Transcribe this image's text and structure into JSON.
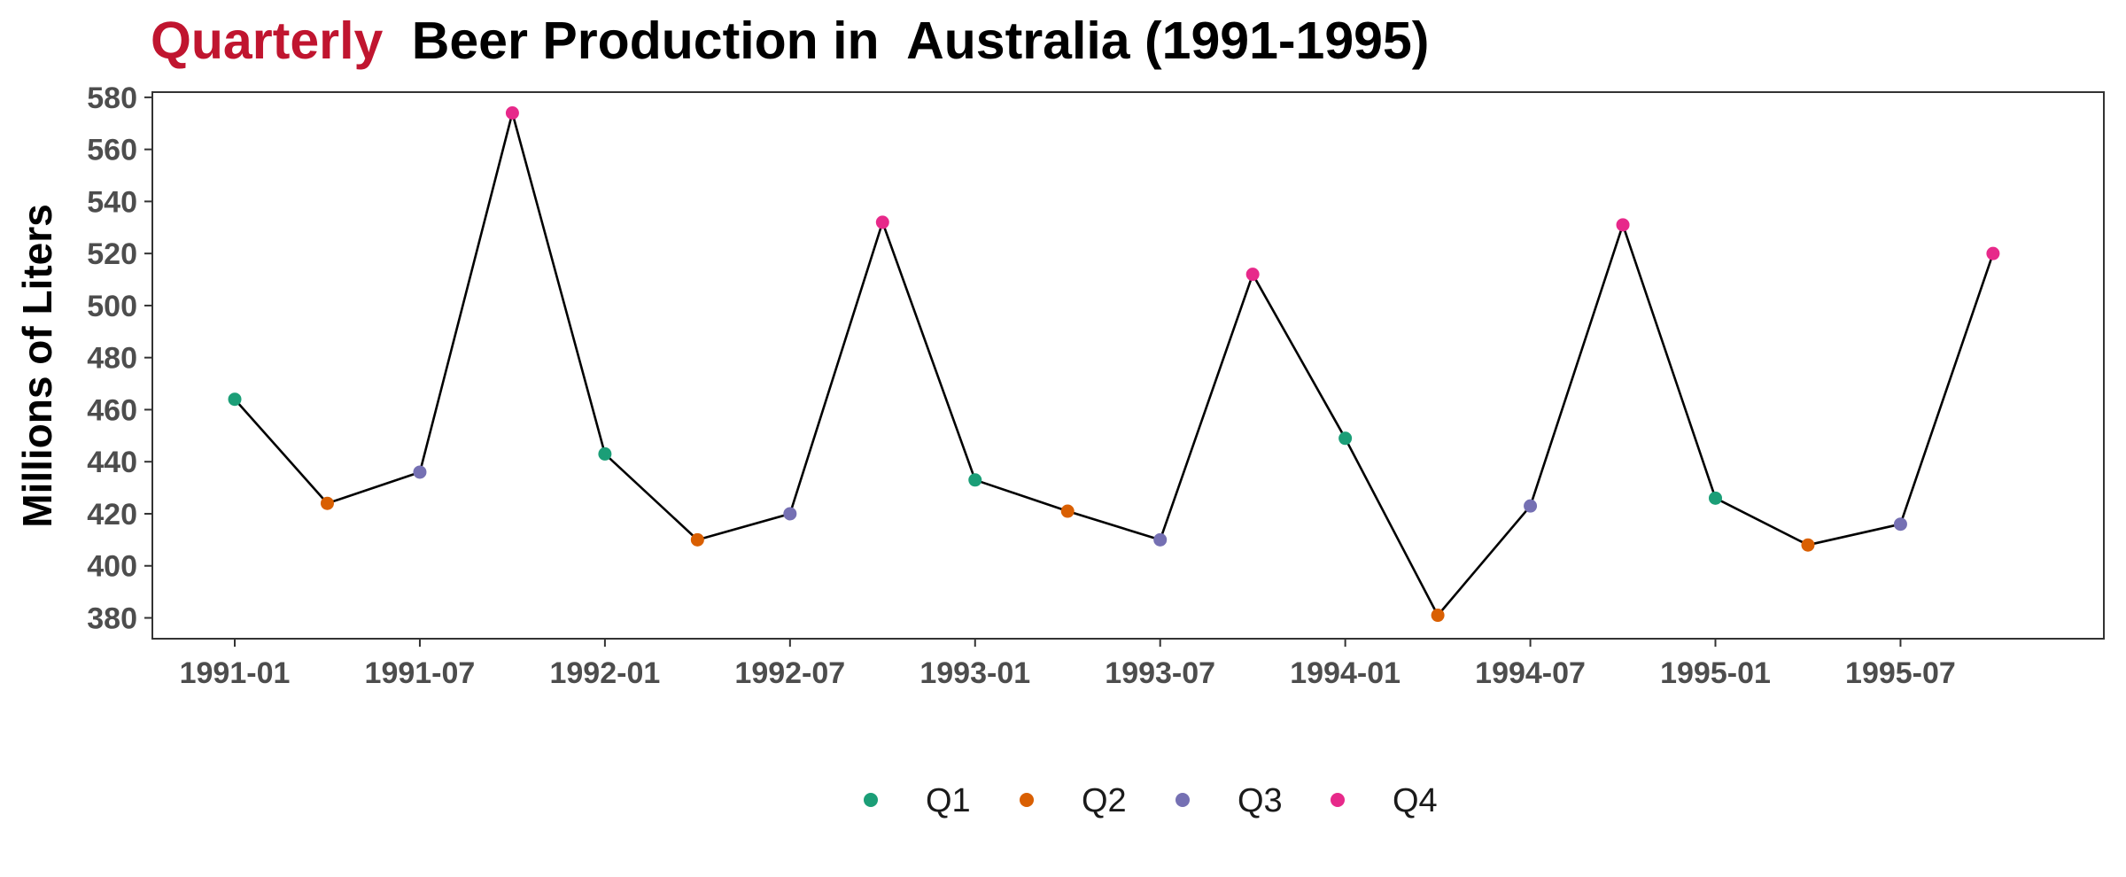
{
  "colors": {
    "title_highlight": "#c0152f",
    "title_text": "#000000",
    "line": "#000000",
    "tick_label": "#4d4d4d",
    "Q1": "#1b9e77",
    "Q2": "#d95f02",
    "Q3": "#7570b3",
    "Q4": "#e7298a"
  },
  "chart_data": {
    "type": "line",
    "title_highlight": "Quarterly",
    "title_rest": "Beer Production in  Australia (1991-1995)",
    "xlabel": "",
    "ylabel": "Millions of Liters",
    "ylim": [
      372,
      582
    ],
    "yticks": [
      380,
      400,
      420,
      440,
      460,
      480,
      500,
      520,
      540,
      560,
      580
    ],
    "xlim": [
      "1990-10-11",
      "1996-01-19"
    ],
    "xticks": [
      "1991-01",
      "1991-07",
      "1992-01",
      "1992-07",
      "1993-01",
      "1993-07",
      "1994-01",
      "1994-07",
      "1995-01",
      "1995-07"
    ],
    "grid": false,
    "legend_position": "bottom",
    "legend": [
      "Q1",
      "Q2",
      "Q3",
      "Q4"
    ],
    "x": [
      "1991-01",
      "1991-04",
      "1991-07",
      "1991-10",
      "1992-01",
      "1992-04",
      "1992-07",
      "1992-10",
      "1993-01",
      "1993-04",
      "1993-07",
      "1993-10",
      "1994-01",
      "1994-04",
      "1994-07",
      "1994-10",
      "1995-01",
      "1995-04",
      "1995-07",
      "1995-10"
    ],
    "quarter": [
      "Q1",
      "Q2",
      "Q3",
      "Q4",
      "Q1",
      "Q2",
      "Q3",
      "Q4",
      "Q1",
      "Q2",
      "Q3",
      "Q4",
      "Q1",
      "Q2",
      "Q3",
      "Q4",
      "Q1",
      "Q2",
      "Q3",
      "Q4"
    ],
    "values": [
      464,
      424,
      436,
      574,
      443,
      410,
      420,
      532,
      433,
      421,
      410,
      512,
      449,
      381,
      423,
      531,
      426,
      408,
      416,
      520
    ]
  }
}
